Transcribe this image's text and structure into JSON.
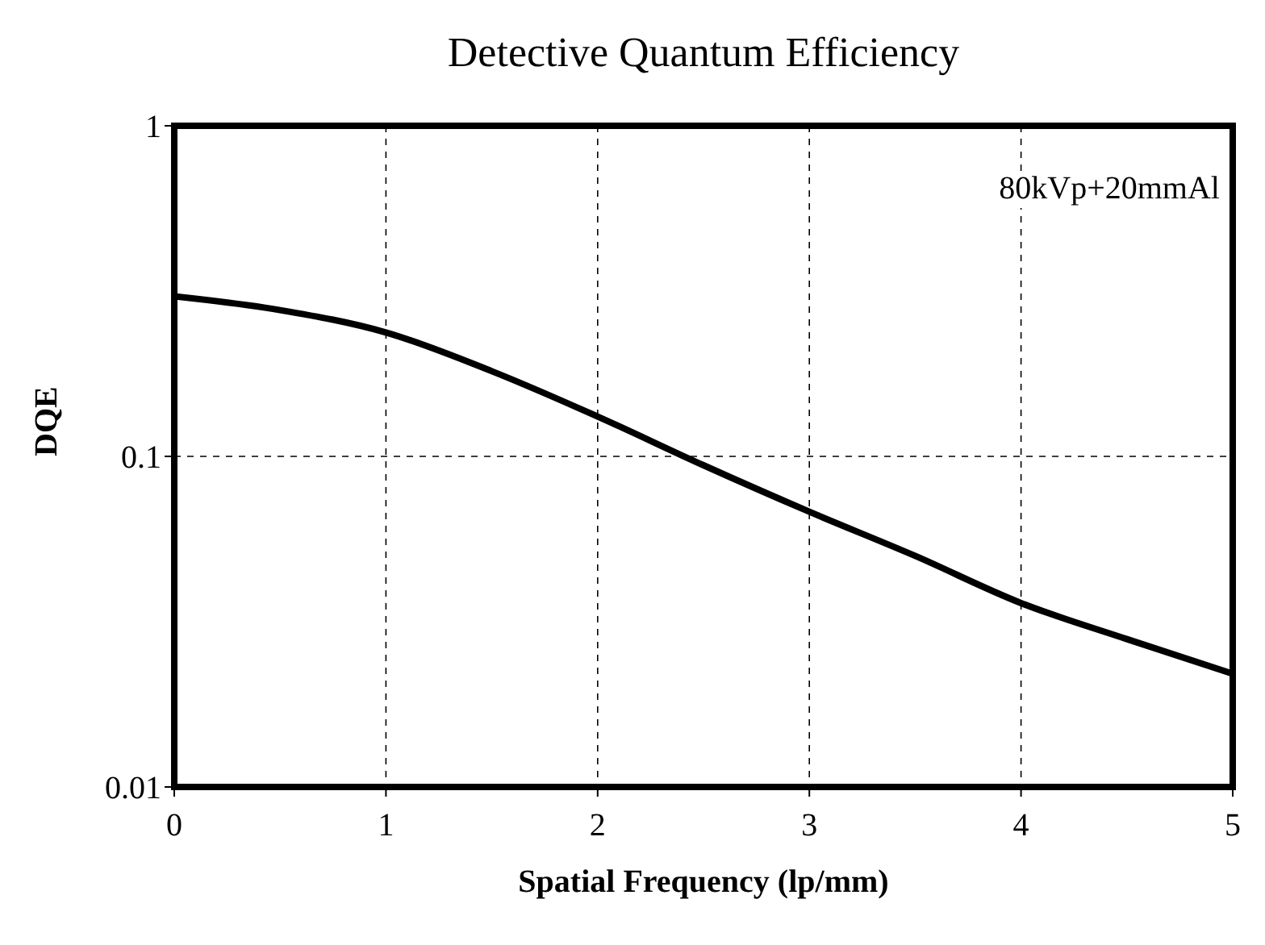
{
  "chart_data": {
    "type": "line",
    "title": "Detective Quantum Efficiency",
    "xlabel": "Spatial Frequency (lp/mm)",
    "ylabel": "DQE",
    "annotations": [
      "80kVp+20mmAl"
    ],
    "x": [
      0,
      0.5,
      1,
      1.5,
      2,
      2.5,
      3,
      3.5,
      4,
      4.5,
      5
    ],
    "series": [
      {
        "color": "#000000",
        "values": [
          0.305,
          0.277,
          0.237,
          0.181,
          0.132,
          0.094,
          0.068,
          0.05,
          0.036,
          0.028,
          0.022
        ]
      }
    ],
    "xlim": [
      0,
      5
    ],
    "xticks": [
      0,
      1,
      2,
      3,
      4,
      5
    ],
    "ylim": [
      0.01,
      1
    ],
    "yticks": [
      0.01,
      0.1,
      1
    ],
    "log": "y",
    "grid": true,
    "marker": "none",
    "line_style": "solid"
  }
}
